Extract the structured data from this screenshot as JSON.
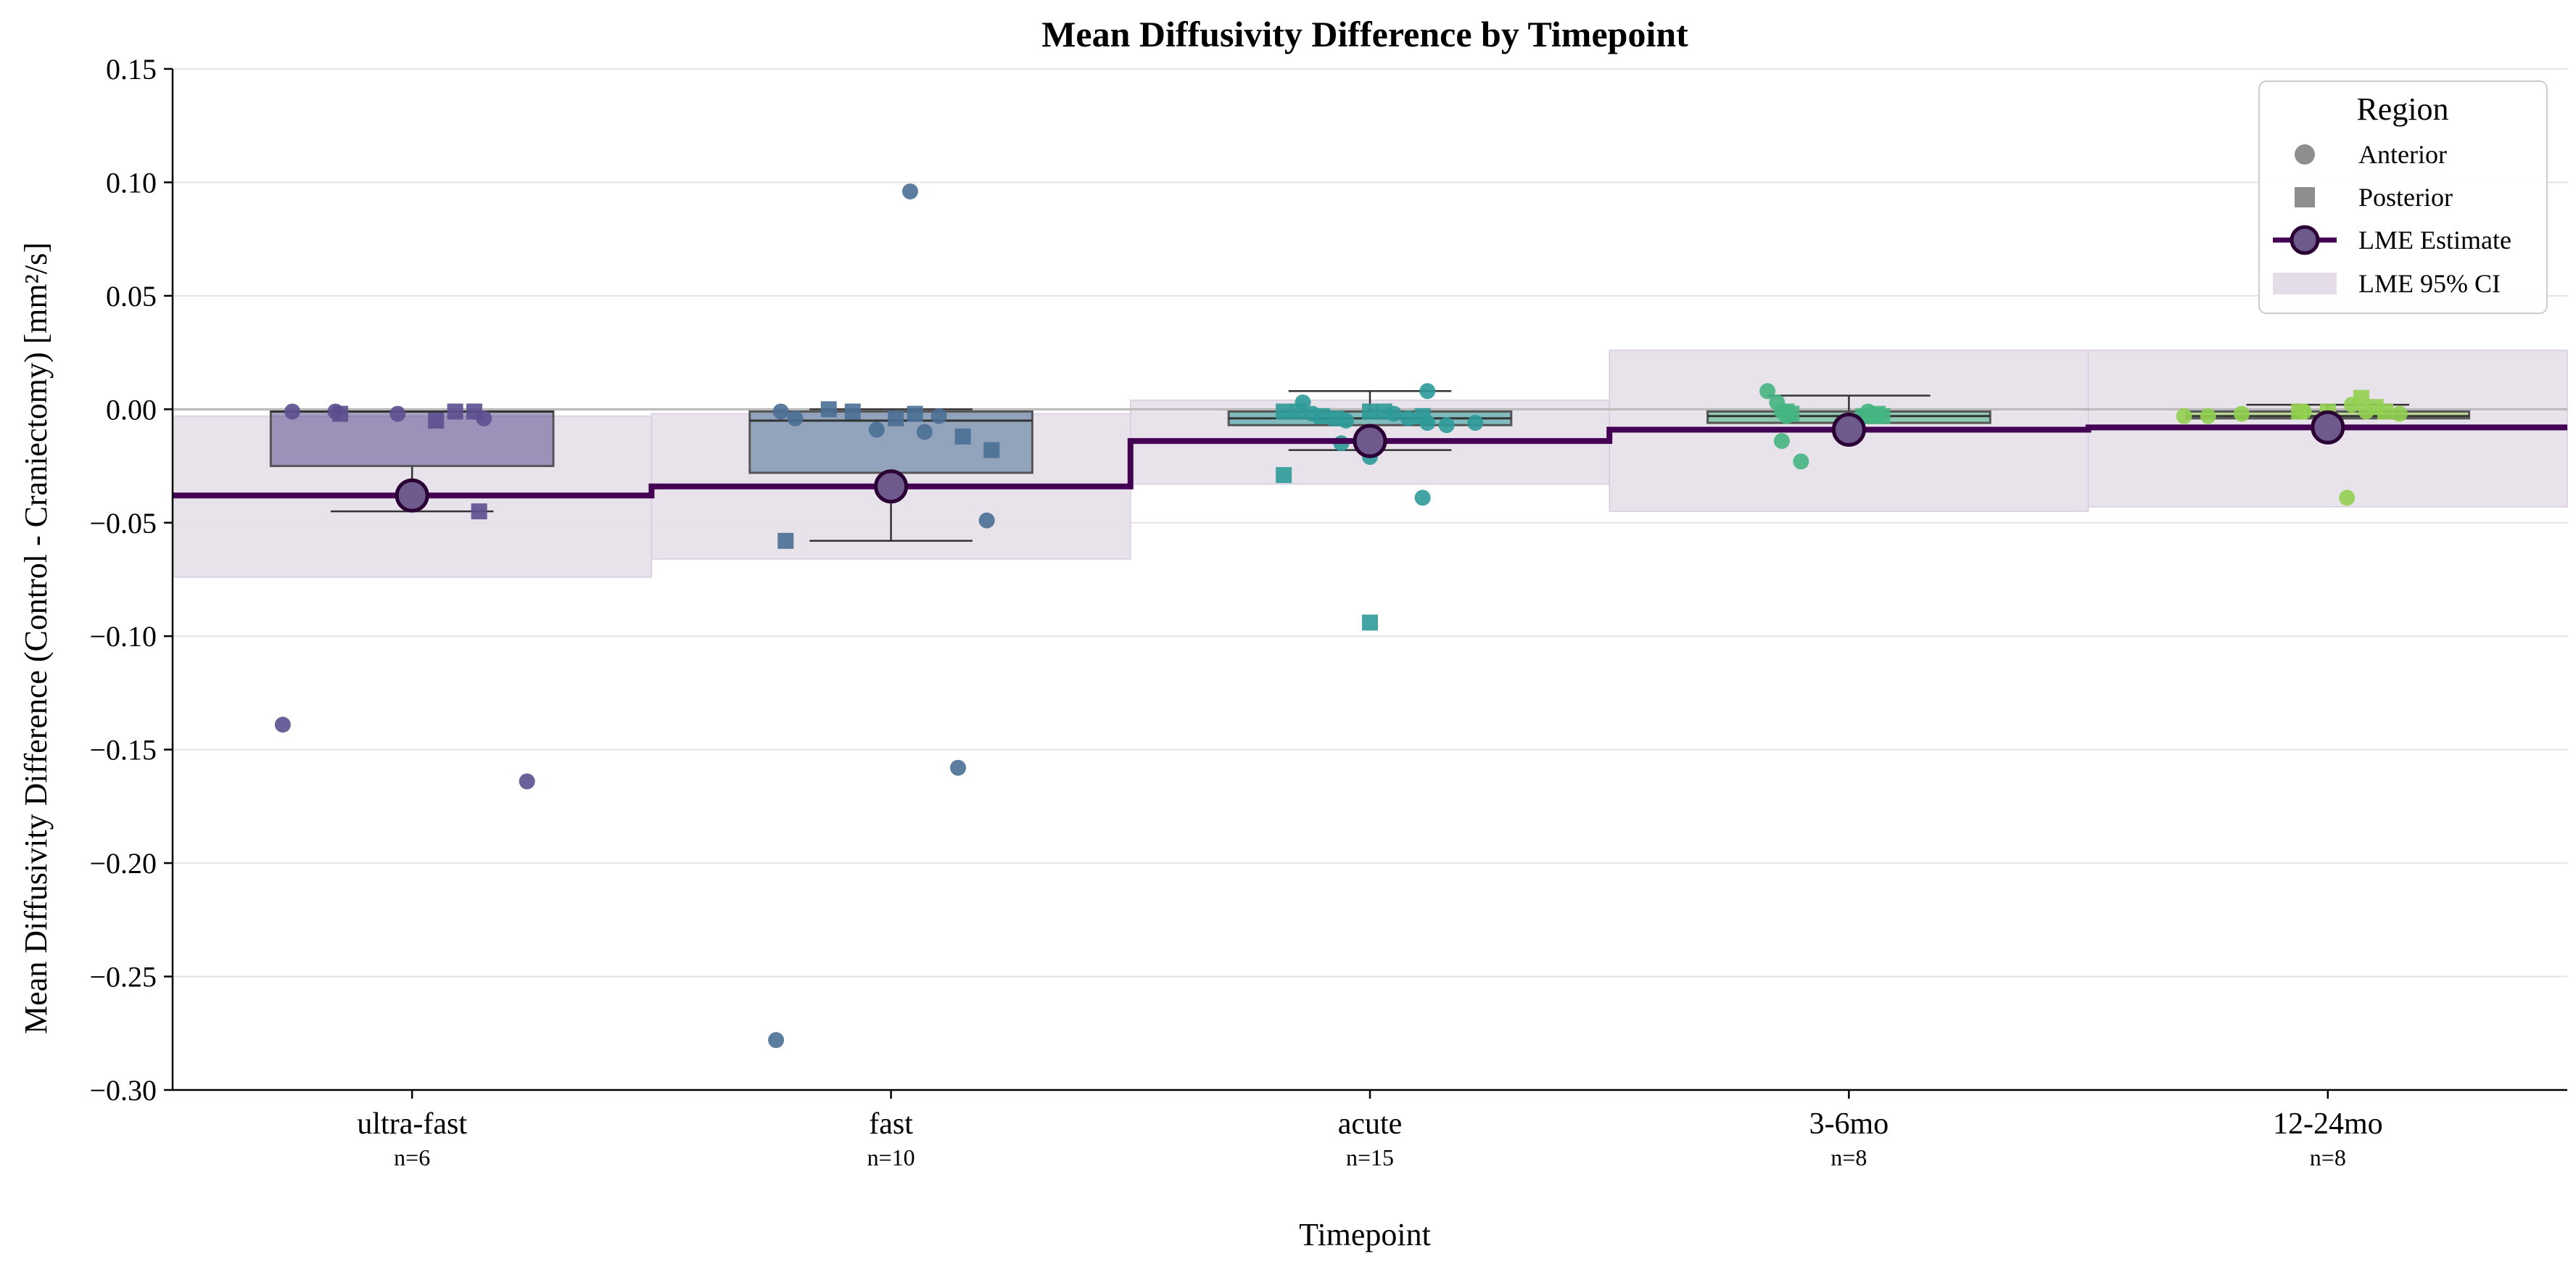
{
  "chart_data": {
    "type": "box",
    "title": "Mean Diffusivity Difference by Timepoint",
    "xlabel": "Timepoint",
    "ylabel": "Mean Diffusivity Difference (Control - Craniectomy) [mm²/s]",
    "ylim": [
      -0.3,
      0.15
    ],
    "yticks": [
      0.15,
      0.1,
      0.05,
      0.0,
      -0.05,
      -0.1,
      -0.15,
      -0.2,
      -0.25,
      -0.3
    ],
    "ytick_labels": [
      "0.15",
      "0.10",
      "0.05",
      "0.00",
      "−0.05",
      "−0.10",
      "−0.15",
      "−0.20",
      "−0.25",
      "−0.30"
    ],
    "grid": "horizontal",
    "reference_line": 0.0,
    "categories": [
      "ultra-fast",
      "fast",
      "acute",
      "3-6mo",
      "12-24mo"
    ],
    "n_labels": [
      "n=6",
      "n=10",
      "n=15",
      "n=8",
      "n=8"
    ],
    "colors": [
      "#5c4f8f",
      "#4a6f95",
      "#2e9a99",
      "#45b582",
      "#92d050"
    ],
    "lme_color": "#440154",
    "ci_color": "#e4dde8",
    "boxes": [
      {
        "q1": -0.025,
        "median": -0.001,
        "q3": -0.001,
        "whisker_low": -0.045,
        "whisker_high": -0.001
      },
      {
        "q1": -0.028,
        "median": -0.005,
        "q3": -0.001,
        "whisker_low": -0.058,
        "whisker_high": 0.0
      },
      {
        "q1": -0.007,
        "median": -0.004,
        "q3": -0.001,
        "whisker_low": -0.018,
        "whisker_high": 0.008
      },
      {
        "q1": -0.006,
        "median": -0.003,
        "q3": -0.001,
        "whisker_low": -0.009,
        "whisker_high": 0.006
      },
      {
        "q1": -0.004,
        "median": -0.003,
        "q3": -0.001,
        "whisker_low": -0.004,
        "whisker_high": 0.002
      }
    ],
    "lme_estimate": [
      -0.038,
      -0.034,
      -0.014,
      -0.009,
      -0.008
    ],
    "lme_ci": [
      {
        "low": -0.074,
        "high": -0.003
      },
      {
        "low": -0.066,
        "high": -0.002
      },
      {
        "low": -0.033,
        "high": 0.004
      },
      {
        "low": -0.045,
        "high": 0.026
      },
      {
        "low": -0.043,
        "high": 0.026
      }
    ],
    "points": [
      [
        {
          "x": -0.25,
          "y": -0.001,
          "m": "o"
        },
        {
          "x": -0.16,
          "y": -0.001,
          "m": "o"
        },
        {
          "x": -0.03,
          "y": -0.002,
          "m": "o"
        },
        {
          "x": 0.15,
          "y": -0.004,
          "m": "o"
        },
        {
          "x": -0.27,
          "y": -0.139,
          "m": "o"
        },
        {
          "x": 0.24,
          "y": -0.164,
          "m": "o"
        },
        {
          "x": -0.15,
          "y": -0.002,
          "m": "s"
        },
        {
          "x": 0.05,
          "y": -0.005,
          "m": "s"
        },
        {
          "x": 0.09,
          "y": -0.001,
          "m": "s"
        },
        {
          "x": 0.13,
          "y": -0.001,
          "m": "s"
        },
        {
          "x": 0.14,
          "y": -0.045,
          "m": "s"
        }
      ],
      [
        {
          "x": -0.23,
          "y": -0.001,
          "m": "o"
        },
        {
          "x": -0.2,
          "y": -0.004,
          "m": "o"
        },
        {
          "x": -0.03,
          "y": -0.009,
          "m": "o"
        },
        {
          "x": 0.07,
          "y": -0.01,
          "m": "o"
        },
        {
          "x": 0.1,
          "y": -0.003,
          "m": "o"
        },
        {
          "x": 0.04,
          "y": 0.096,
          "m": "o"
        },
        {
          "x": 0.14,
          "y": -0.158,
          "m": "o"
        },
        {
          "x": -0.24,
          "y": -0.278,
          "m": "o"
        },
        {
          "x": 0.2,
          "y": -0.049,
          "m": "o"
        },
        {
          "x": -0.13,
          "y": 0.0,
          "m": "s"
        },
        {
          "x": -0.08,
          "y": -0.001,
          "m": "s"
        },
        {
          "x": 0.05,
          "y": -0.002,
          "m": "s"
        },
        {
          "x": 0.15,
          "y": -0.012,
          "m": "s"
        },
        {
          "x": 0.21,
          "y": -0.018,
          "m": "s"
        },
        {
          "x": -0.22,
          "y": -0.058,
          "m": "s"
        },
        {
          "x": 0.01,
          "y": -0.004,
          "m": "s"
        }
      ],
      [
        {
          "x": -0.14,
          "y": 0.003,
          "m": "o"
        },
        {
          "x": -0.12,
          "y": -0.002,
          "m": "o"
        },
        {
          "x": -0.05,
          "y": -0.005,
          "m": "o"
        },
        {
          "x": -0.06,
          "y": -0.015,
          "m": "o"
        },
        {
          "x": 0.0,
          "y": -0.021,
          "m": "o"
        },
        {
          "x": 0.05,
          "y": -0.002,
          "m": "o"
        },
        {
          "x": 0.12,
          "y": -0.006,
          "m": "o"
        },
        {
          "x": 0.16,
          "y": -0.007,
          "m": "o"
        },
        {
          "x": 0.22,
          "y": -0.006,
          "m": "o"
        },
        {
          "x": 0.12,
          "y": 0.008,
          "m": "o"
        },
        {
          "x": 0.11,
          "y": -0.039,
          "m": "o"
        },
        {
          "x": 0.08,
          "y": -0.004,
          "m": "o"
        },
        {
          "x": -0.18,
          "y": -0.001,
          "m": "s"
        },
        {
          "x": -0.15,
          "y": -0.001,
          "m": "s"
        },
        {
          "x": -0.1,
          "y": -0.003,
          "m": "s"
        },
        {
          "x": -0.07,
          "y": -0.004,
          "m": "s"
        },
        {
          "x": 0.0,
          "y": -0.001,
          "m": "s"
        },
        {
          "x": 0.03,
          "y": -0.001,
          "m": "s"
        },
        {
          "x": 0.11,
          "y": -0.003,
          "m": "s"
        },
        {
          "x": -0.18,
          "y": -0.029,
          "m": "s"
        },
        {
          "x": 0.0,
          "y": -0.094,
          "m": "s"
        }
      ],
      [
        {
          "x": -0.17,
          "y": 0.008,
          "m": "o"
        },
        {
          "x": -0.15,
          "y": 0.003,
          "m": "o"
        },
        {
          "x": -0.14,
          "y": -0.001,
          "m": "o"
        },
        {
          "x": -0.13,
          "y": -0.003,
          "m": "o"
        },
        {
          "x": -0.14,
          "y": -0.014,
          "m": "o"
        },
        {
          "x": -0.1,
          "y": -0.023,
          "m": "o"
        },
        {
          "x": 0.04,
          "y": -0.001,
          "m": "o"
        },
        {
          "x": 0.05,
          "y": -0.003,
          "m": "o"
        },
        {
          "x": -0.13,
          "y": -0.001,
          "m": "s"
        },
        {
          "x": -0.12,
          "y": -0.002,
          "m": "s"
        },
        {
          "x": 0.03,
          "y": -0.003,
          "m": "s"
        },
        {
          "x": 0.06,
          "y": -0.002,
          "m": "s"
        },
        {
          "x": 0.07,
          "y": -0.003,
          "m": "s"
        }
      ],
      [
        {
          "x": -0.3,
          "y": -0.003,
          "m": "o"
        },
        {
          "x": -0.25,
          "y": -0.003,
          "m": "o"
        },
        {
          "x": -0.18,
          "y": -0.002,
          "m": "o"
        },
        {
          "x": -0.05,
          "y": -0.001,
          "m": "o"
        },
        {
          "x": 0.05,
          "y": 0.002,
          "m": "o"
        },
        {
          "x": 0.08,
          "y": -0.001,
          "m": "o"
        },
        {
          "x": 0.15,
          "y": -0.002,
          "m": "o"
        },
        {
          "x": 0.04,
          "y": -0.039,
          "m": "o"
        },
        {
          "x": -0.06,
          "y": -0.001,
          "m": "s"
        },
        {
          "x": 0.0,
          "y": -0.001,
          "m": "s"
        },
        {
          "x": 0.07,
          "y": 0.005,
          "m": "s"
        },
        {
          "x": 0.1,
          "y": 0.001,
          "m": "s"
        },
        {
          "x": 0.12,
          "y": -0.001,
          "m": "s"
        }
      ]
    ],
    "legend": {
      "title": "Region",
      "position": "top-right",
      "entries": [
        {
          "label": "Anterior",
          "kind": "circle"
        },
        {
          "label": "Posterior",
          "kind": "square"
        },
        {
          "label": "LME Estimate",
          "kind": "line-marker"
        },
        {
          "label": "LME 95% CI",
          "kind": "patch"
        }
      ]
    }
  }
}
